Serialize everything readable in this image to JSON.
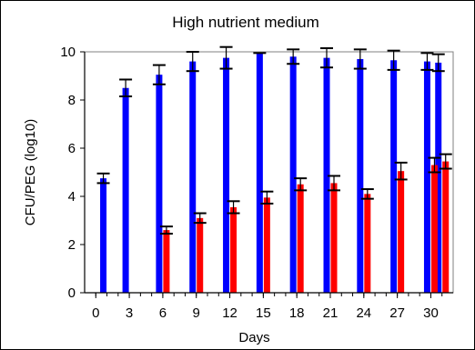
{
  "chart_data": {
    "type": "bar",
    "title": "High nutrient medium",
    "xlabel": "Days",
    "ylabel": "CFU/PEG (log10)",
    "ylim": [
      0,
      10
    ],
    "yticks": [
      0,
      2,
      4,
      6,
      8,
      10
    ],
    "xlim": [
      -1,
      32
    ],
    "xticks": [
      0,
      3,
      6,
      9,
      12,
      15,
      18,
      21,
      24,
      27,
      30
    ],
    "grid": false,
    "legend": "none",
    "series": [
      {
        "color": "#0000ff",
        "x": [
          1,
          3,
          6,
          9,
          12,
          15,
          18,
          21,
          24,
          27,
          30,
          31
        ],
        "values": [
          4.75,
          8.5,
          9.05,
          9.6,
          9.75,
          9.95,
          9.8,
          9.75,
          9.7,
          9.65,
          9.6,
          9.55
        ],
        "errors": [
          0.2,
          0.35,
          0.4,
          0.4,
          0.45,
          0.0,
          0.3,
          0.4,
          0.4,
          0.4,
          0.35,
          0.35
        ]
      },
      {
        "color": "#ff0000",
        "x": [
          6,
          9,
          12,
          15,
          18,
          21,
          24,
          27,
          30,
          31
        ],
        "values": [
          2.6,
          3.1,
          3.55,
          3.95,
          4.5,
          4.55,
          4.1,
          5.05,
          5.3,
          5.45
        ],
        "errors": [
          0.15,
          0.2,
          0.25,
          0.25,
          0.25,
          0.3,
          0.2,
          0.35,
          0.3,
          0.3
        ]
      }
    ]
  }
}
